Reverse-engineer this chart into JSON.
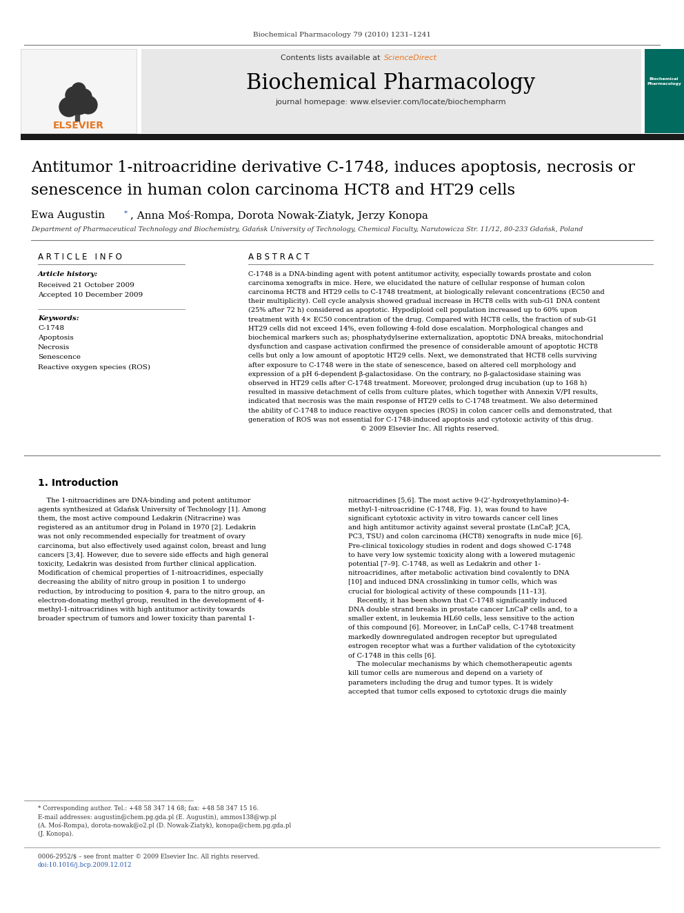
{
  "journal_ref": "Biochemical Pharmacology 79 (2010) 1231–1241",
  "header_text": "Contents lists available at ScienceDirect",
  "journal_name": "Biochemical Pharmacology",
  "journal_url": "journal homepage: www.elsevier.com/locate/biochempharm",
  "article_title_line1": "Antitumor 1-nitroacridine derivative C-1748, induces apoptosis, necrosis or",
  "article_title_line2": "senescence in human colon carcinoma HCT8 and HT29 cells",
  "authors_part1": "Ewa Augustin ",
  "authors_part2": ", Anna Moś-Rompa, Dorota Nowak-Ziatyk, Jerzy Konopa",
  "affiliation": "Department of Pharmaceutical Technology and Biochemistry, Gdańsk University of Technology, Chemical Faculty, Narutowicza Str. 11/12, 80-233 Gdańsk, Poland",
  "article_info_title": "A R T I C L E   I N F O",
  "abstract_title": "A B S T R A C T",
  "article_history_label": "Article history:",
  "received": "Received 21 October 2009",
  "accepted": "Accepted 10 December 2009",
  "keywords_label": "Keywords:",
  "keywords": [
    "C-1748",
    "Apoptosis",
    "Necrosis",
    "Senescence",
    "Reactive oxygen species (ROS)"
  ],
  "abstract_lines": [
    "C-1748 is a DNA-binding agent with potent antitumor activity, especially towards prostate and colon",
    "carcinoma xenografts in mice. Here, we elucidated the nature of cellular response of human colon",
    "carcinoma HCT8 and HT29 cells to C-1748 treatment, at biologically relevant concentrations (EC50 and",
    "their multiplicity). Cell cycle analysis showed gradual increase in HCT8 cells with sub-G1 DNA content",
    "(25% after 72 h) considered as apoptotic. Hypodiploid cell population increased up to 60% upon",
    "treatment with 4× EC50 concentration of the drug. Compared with HCT8 cells, the fraction of sub-G1",
    "HT29 cells did not exceed 14%, even following 4-fold dose escalation. Morphological changes and",
    "biochemical markers such as; phosphatydylserine externalization, apoptotic DNA breaks, mitochondrial",
    "dysfunction and caspase activation confirmed the presence of considerable amount of apoptotic HCT8",
    "cells but only a low amount of apoptotic HT29 cells. Next, we demonstrated that HCT8 cells surviving",
    "after exposure to C-1748 were in the state of senescence, based on altered cell morphology and",
    "expression of a pH 6-dependent β-galactosidase. On the contrary, no β-galactosidase staining was",
    "observed in HT29 cells after C-1748 treatment. Moreover, prolonged drug incubation (up to 168 h)",
    "resulted in massive detachment of cells from culture plates, which together with Annexin V/PI results,",
    "indicated that necrosis was the main response of HT29 cells to C-1748 treatment. We also determined",
    "the ability of C-1748 to induce reactive oxygen species (ROS) in colon cancer cells and demonstrated, that",
    "generation of ROS was not essential for C-1748-induced apoptosis and cytotoxic activity of this drug.",
    "                                                    © 2009 Elsevier Inc. All rights reserved."
  ],
  "section1_title": "1. Introduction",
  "intro_left_lines": [
    "    The 1-nitroacridines are DNA-binding and potent antitumor",
    "agents synthesized at Gdańsk University of Technology [1]. Among",
    "them, the most active compound Ledakrin (Nitracrine) was",
    "registered as an antitumor drug in Poland in 1970 [2]. Ledakrin",
    "was not only recommended especially for treatment of ovary",
    "carcinoma, but also effectively used against colon, breast and lung",
    "cancers [3,4]. However, due to severe side effects and high general",
    "toxicity, Ledakrin was desisted from further clinical application.",
    "Modification of chemical properties of 1-nitroacridines, especially",
    "decreasing the ability of nitro group in position 1 to undergo",
    "reduction, by introducing to position 4, para to the nitro group, an",
    "electron-donating methyl group, resulted in the development of 4-",
    "methyl-1-nitroacridines with high antitumor activity towards",
    "broader spectrum of tumors and lower toxicity than parental 1-"
  ],
  "intro_right_lines": [
    "nitroacridines [5,6]. The most active 9-(2’-hydroxyethylamino)-4-",
    "methyl-1-nitroacridine (C-1748, Fig. 1), was found to have",
    "significant cytotoxic activity in vitro towards cancer cell lines",
    "and high antitumor activity against several prostate (LnCaP, JCA,",
    "PC3, TSU) and colon carcinoma (HCT8) xenografts in nude mice [6].",
    "Pre-clinical toxicology studies in rodent and dogs showed C-1748",
    "to have very low systemic toxicity along with a lowered mutagenic",
    "potential [7–9]. C-1748, as well as Ledakrin and other 1-",
    "nitroacridines, after metabolic activation bind covalently to DNA",
    "[10] and induced DNA crosslinking in tumor cells, which was",
    "crucial for biological activity of these compounds [11–13].",
    "    Recently, it has been shown that C-1748 significantly induced",
    "DNA double strand breaks in prostate cancer LnCaP cells and, to a",
    "smaller extent, in leukemia HL60 cells, less sensitive to the action",
    "of this compound [6]. Moreover, in LnCaP cells, C-1748 treatment",
    "markedly downregulated androgen receptor but upregulated",
    "estrogen receptor what was a further validation of the cytotoxicity",
    "of C-1748 in this cells [6].",
    "    The molecular mechanisms by which chemotherapeutic agents",
    "kill tumor cells are numerous and depend on a variety of",
    "parameters including the drug and tumor types. It is widely",
    "accepted that tumor cells exposed to cytotoxic drugs die mainly"
  ],
  "footer_line1": "* Corresponding author. Tel.: +48 58 347 14 68; fax: +48 58 347 15 16.",
  "footer_line2": "E-mail addresses: augustin@chem.pg.gda.pl (E. Augustin), ammos138@wp.pl",
  "footer_line3": "(A. Moś-Rompa), dorota-nowak@o2.pl (D. Nowak-Ziatyk), konopa@chem.pg.gda.pl",
  "footer_line4": "(J. Konopa).",
  "footer_issn": "0006-2952/$ – see front matter © 2009 Elsevier Inc. All rights reserved.",
  "footer_doi": "doi:10.1016/j.bcp.2009.12.012",
  "bg_color": "#ffffff",
  "header_bg": "#e8e8e8",
  "black_bar_color": "#1a1a1a",
  "sciencedirect_color": "#e87722",
  "teal_color": "#006b5e",
  "link_color": "#2255aa",
  "text_dark": "#000000",
  "text_mid": "#333333",
  "line_color": "#777777"
}
